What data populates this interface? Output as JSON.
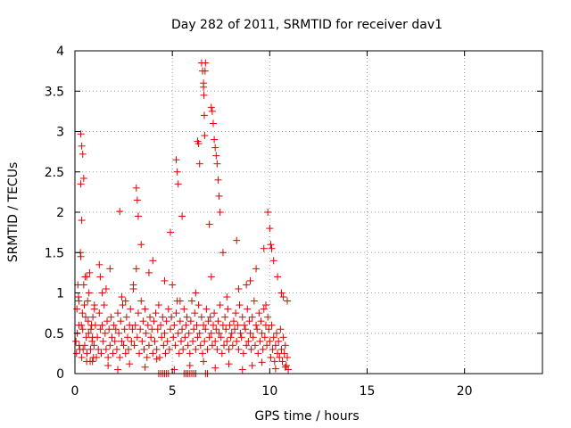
{
  "chart_data": {
    "type": "scatter",
    "title": "Day 282 of 2011, SRMTID for receiver dav1",
    "xlabel": "GPS time / hours",
    "ylabel": "SRMTID / TECUs",
    "xlim": [
      0,
      24
    ],
    "ylim": [
      0,
      4
    ],
    "xticks": [
      0,
      5,
      10,
      15,
      20
    ],
    "xtick_labels": [
      "0",
      "5",
      "10",
      "15",
      "20"
    ],
    "yticks": [
      0,
      0.5,
      1,
      1.5,
      2,
      2.5,
      3,
      3.5,
      4
    ],
    "ytick_labels": [
      "0",
      "0.5",
      "1",
      "1.5",
      "2",
      "2.5",
      "3",
      "3.5",
      "4"
    ],
    "grid": true,
    "marker": "+",
    "color": "#e00000",
    "series": [
      {
        "name": "SRMTID",
        "x": [
          0.05,
          0.1,
          0.15,
          0.2,
          0.25,
          0.3,
          0.35,
          0.4,
          0.45,
          0.5,
          0.55,
          0.6,
          0.65,
          0.7,
          0.75,
          0.8,
          0.85,
          0.9,
          0.95,
          1.0,
          0.08,
          0.12,
          0.18,
          0.22,
          0.28,
          0.33,
          0.38,
          0.42,
          0.48,
          0.52,
          0.58,
          0.62,
          0.68,
          0.72,
          0.78,
          0.82,
          0.88,
          0.92,
          0.98,
          1.05,
          1.1,
          1.15,
          1.2,
          1.25,
          1.3,
          1.35,
          1.4,
          1.45,
          1.5,
          1.55,
          1.6,
          1.65,
          1.7,
          1.75,
          1.8,
          1.85,
          1.9,
          1.95,
          2.0,
          2.05,
          2.1,
          2.15,
          2.2,
          2.25,
          2.3,
          2.35,
          2.4,
          2.45,
          2.5,
          2.55,
          2.6,
          2.65,
          2.7,
          2.75,
          2.8,
          2.85,
          2.9,
          2.95,
          3.0,
          3.05,
          3.1,
          3.15,
          3.2,
          3.25,
          3.3,
          3.35,
          3.4,
          3.45,
          3.5,
          3.55,
          3.6,
          3.65,
          3.7,
          3.75,
          3.8,
          3.85,
          3.9,
          3.95,
          4.0,
          4.05,
          4.1,
          4.15,
          4.2,
          4.25,
          4.3,
          4.35,
          4.4,
          4.45,
          4.5,
          4.55,
          4.6,
          4.65,
          4.7,
          4.75,
          4.8,
          4.85,
          4.9,
          4.95,
          5.0,
          5.05,
          5.1,
          5.15,
          5.2,
          5.25,
          5.3,
          5.35,
          5.4,
          5.45,
          5.5,
          5.55,
          5.6,
          5.65,
          5.7,
          5.75,
          5.8,
          5.85,
          5.9,
          5.95,
          6.0,
          6.05,
          6.1,
          6.15,
          6.2,
          6.25,
          6.3,
          6.35,
          6.4,
          6.45,
          6.5,
          6.55,
          6.6,
          6.65,
          6.7,
          6.75,
          6.8,
          6.85,
          6.9,
          6.95,
          7.0,
          7.05,
          7.1,
          7.15,
          7.2,
          7.25,
          7.3,
          7.35,
          7.4,
          7.45,
          7.5,
          7.55,
          7.6,
          7.65,
          7.7,
          7.75,
          7.8,
          7.85,
          7.9,
          7.95,
          8.0,
          8.05,
          8.1,
          8.15,
          8.2,
          8.25,
          8.3,
          8.35,
          8.4,
          8.45,
          8.5,
          8.55,
          8.6,
          8.65,
          8.7,
          8.75,
          8.8,
          8.85,
          8.9,
          8.95,
          9.0,
          9.05,
          9.1,
          9.15,
          9.2,
          9.25,
          9.3,
          9.35,
          9.4,
          9.45,
          9.5,
          9.55,
          9.6,
          9.65,
          9.7,
          9.75,
          9.8,
          9.85,
          9.9,
          9.95,
          10.0,
          10.05,
          10.1,
          10.15,
          10.2,
          10.25,
          10.3,
          10.35,
          10.4,
          10.45,
          10.5,
          10.55,
          10.6,
          10.65,
          10.7,
          10.75,
          10.8,
          10.85,
          10.9,
          10.95,
          0.3,
          0.35,
          0.4,
          0.45,
          0.3,
          0.35,
          3.15,
          3.2,
          3.25,
          5.2,
          5.25,
          5.3,
          6.3,
          6.35,
          6.4,
          6.5,
          6.55,
          6.6,
          7.0,
          7.05,
          7.1,
          7.15,
          7.2,
          7.25,
          6.6,
          6.62,
          6.64,
          6.66,
          6.68,
          6.7,
          7.3,
          7.35,
          7.4,
          7.45,
          9.9,
          10.0,
          10.05,
          10.1,
          10.2,
          2.3,
          1.25,
          1.3,
          4.3,
          4.4,
          4.5,
          4.6,
          4.7,
          4.8,
          5.6,
          5.7,
          5.8,
          5.9,
          6.0,
          6.1,
          6.2,
          6.7,
          6.8,
          0.6,
          1.4,
          1.8,
          2.6,
          3.4,
          4.0,
          4.9,
          5.5,
          6.9,
          7.6,
          8.3,
          8.8,
          9.3,
          9.7,
          10.4,
          10.7,
          0.9,
          1.7,
          2.2,
          2.8,
          3.6,
          4.2,
          5.1,
          5.9,
          6.6,
          7.2,
          7.9,
          8.6,
          9.1,
          9.6,
          10.3,
          10.8,
          0.2,
          1.0,
          1.6,
          2.4,
          3.0,
          3.8,
          4.6,
          5.4,
          6.2,
          7.0,
          7.8,
          8.4,
          9.0,
          9.8,
          10.6,
          10.9
        ],
        "y": [
          0.4,
          0.8,
          1.1,
          0.6,
          0.3,
          1.45,
          0.2,
          0.55,
          1.1,
          0.35,
          0.7,
          0.15,
          0.9,
          0.5,
          1.25,
          0.3,
          0.6,
          0.45,
          0.2,
          0.8,
          0.25,
          0.5,
          0.95,
          0.35,
          1.5,
          0.6,
          0.75,
          0.3,
          0.85,
          1.2,
          0.45,
          0.25,
          0.65,
          1.0,
          0.15,
          0.55,
          0.4,
          0.7,
          0.35,
          0.6,
          0.2,
          0.45,
          0.3,
          0.75,
          0.55,
          0.25,
          0.6,
          0.4,
          0.85,
          0.5,
          0.3,
          0.65,
          0.2,
          0.55,
          0.35,
          0.7,
          0.45,
          0.25,
          0.6,
          0.4,
          0.55,
          0.3,
          0.75,
          0.5,
          0.2,
          0.65,
          0.4,
          0.85,
          0.35,
          0.55,
          0.25,
          0.7,
          0.45,
          0.3,
          0.6,
          0.8,
          0.4,
          0.55,
          1.05,
          0.35,
          0.6,
          1.3,
          0.45,
          0.75,
          0.25,
          0.55,
          0.9,
          0.4,
          0.65,
          0.3,
          0.8,
          0.5,
          0.2,
          0.6,
          0.35,
          0.7,
          0.45,
          0.55,
          0.25,
          0.65,
          0.4,
          0.75,
          0.3,
          0.55,
          0.85,
          0.2,
          0.6,
          0.45,
          0.7,
          0.35,
          0.5,
          0.25,
          0.65,
          0.4,
          0.8,
          0.3,
          0.55,
          0.7,
          1.1,
          0.45,
          0.6,
          0.35,
          0.75,
          0.9,
          0.5,
          0.25,
          0.65,
          0.4,
          0.55,
          0.3,
          0.8,
          0.45,
          0.6,
          0.7,
          0.35,
          0.5,
          0.25,
          0.65,
          0.9,
          0.4,
          0.55,
          0.75,
          0.3,
          0.6,
          0.45,
          0.85,
          0.5,
          0.35,
          0.7,
          0.25,
          0.6,
          0.4,
          0.55,
          0.8,
          0.3,
          0.65,
          0.45,
          0.7,
          0.5,
          0.35,
          0.6,
          0.75,
          0.4,
          0.55,
          0.3,
          0.65,
          0.5,
          0.85,
          0.45,
          0.25,
          0.6,
          0.35,
          0.7,
          0.55,
          0.4,
          0.8,
          0.3,
          0.6,
          0.45,
          0.5,
          0.35,
          0.65,
          0.55,
          0.75,
          0.4,
          0.6,
          0.3,
          0.85,
          0.5,
          0.45,
          0.7,
          0.25,
          0.6,
          0.55,
          0.35,
          0.8,
          0.4,
          0.65,
          0.5,
          0.3,
          0.7,
          0.45,
          0.9,
          0.35,
          0.6,
          0.55,
          0.25,
          0.75,
          0.4,
          0.65,
          0.5,
          0.3,
          0.8,
          0.45,
          0.6,
          0.35,
          0.7,
          0.55,
          0.4,
          0.2,
          0.6,
          0.3,
          0.45,
          0.15,
          0.35,
          0.5,
          0.25,
          0.4,
          0.2,
          0.55,
          0.3,
          0.15,
          0.45,
          0.25,
          0.35,
          0.1,
          0.2,
          0.05,
          2.97,
          2.82,
          2.72,
          2.42,
          2.35,
          1.9,
          2.3,
          2.15,
          1.95,
          2.65,
          2.5,
          2.35,
          2.88,
          2.85,
          2.6,
          3.85,
          3.75,
          3.6,
          3.3,
          3.25,
          3.1,
          2.9,
          2.8,
          2.7,
          3.55,
          3.45,
          3.2,
          2.95,
          3.75,
          3.85,
          2.6,
          2.4,
          2.2,
          2.0,
          2.0,
          1.8,
          1.6,
          1.55,
          1.4,
          2.01,
          1.35,
          1.2,
          0.0,
          0.0,
          0.0,
          0.0,
          0.0,
          0.0,
          0.0,
          0.0,
          0.0,
          0.0,
          0.0,
          0.0,
          0.0,
          0.0,
          0.0,
          1.2,
          1.0,
          1.3,
          0.9,
          1.6,
          1.4,
          1.75,
          1.95,
          1.85,
          1.5,
          1.65,
          1.1,
          1.3,
          1.55,
          1.2,
          0.95,
          0.15,
          0.1,
          0.05,
          0.12,
          0.08,
          0.18,
          0.05,
          0.1,
          0.15,
          0.07,
          0.12,
          0.05,
          0.1,
          0.14,
          0.06,
          0.08,
          0.9,
          0.85,
          1.05,
          0.95,
          1.1,
          1.25,
          1.15,
          0.9,
          1.0,
          1.2,
          0.95,
          1.05,
          1.15,
          0.85,
          1.0,
          0.9
        ]
      }
    ]
  }
}
